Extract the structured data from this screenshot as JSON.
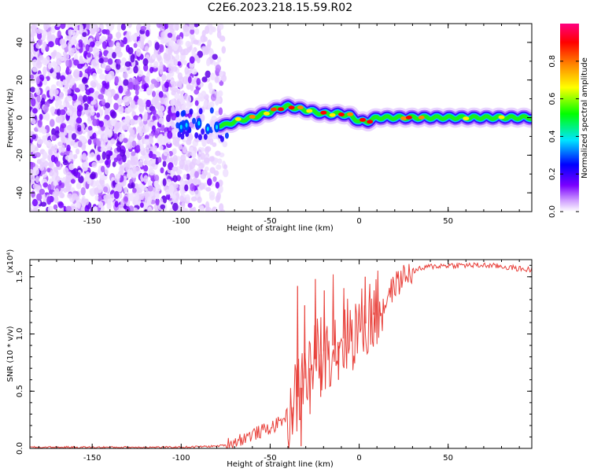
{
  "figure_title": "C2E6.2023.218.15.59.R02",
  "chart_data": [
    {
      "type": "heatmap",
      "xlabel": "Height of straight line (km)",
      "ylabel": "Frequency (Hz)",
      "xlim": [
        -185,
        97
      ],
      "ylim": [
        -50,
        50
      ],
      "xticks": [
        -150,
        -100,
        -50,
        0,
        50
      ],
      "yticks": [
        -40,
        -20,
        0,
        20,
        40
      ],
      "colorbar": {
        "label": "Normalized spectral amplitude",
        "range": [
          0,
          1
        ],
        "ticks": [
          "0.0",
          "0.2",
          "0.4",
          "0.6",
          "0.8"
        ],
        "colormap": "rainbow",
        "stops": [
          "#ffffff",
          "#7a00ff",
          "#0000ff",
          "#00e5ff",
          "#00ff00",
          "#ffff00",
          "#ff8800",
          "#ff0000",
          "#ff0080"
        ]
      },
      "noise_region_x": [
        -185,
        -75
      ],
      "ridge": {
        "description_values_in": "x km, frequency Hz",
        "points": [
          [
            -100,
            -5
          ],
          [
            -90,
            -5
          ],
          [
            -80,
            -4
          ],
          [
            -75,
            -4
          ],
          [
            -70,
            -2
          ],
          [
            -60,
            0
          ],
          [
            -50,
            3
          ],
          [
            -45,
            5
          ],
          [
            -40,
            6
          ],
          [
            -35,
            5
          ],
          [
            -30,
            4
          ],
          [
            -25,
            3
          ],
          [
            -20,
            2
          ],
          [
            -10,
            2
          ],
          [
            -5,
            1
          ],
          [
            0,
            -2
          ],
          [
            5,
            -2
          ],
          [
            10,
            0
          ],
          [
            20,
            0
          ],
          [
            40,
            0
          ],
          [
            60,
            0
          ],
          [
            80,
            0
          ],
          [
            95,
            0
          ]
        ]
      }
    },
    {
      "type": "line",
      "xlabel": "Height of straight line (km)",
      "ylabel": "SNR (10 * v/v)",
      "y_multiplier": "(x10⁴)",
      "xlim": [
        -185,
        97
      ],
      "ylim": [
        0,
        1.65
      ],
      "xticks": [
        -150,
        -100,
        -50,
        0,
        50
      ],
      "yticks": [
        "0.0",
        "0.5",
        "1.0",
        "1.5"
      ],
      "color": "#e8403a",
      "x_step": 0.5,
      "trend": {
        "x": [
          -185,
          -100,
          -80,
          -75,
          -70,
          -60,
          -50,
          -45,
          -40,
          -35,
          -30,
          -25,
          -20,
          -15,
          -10,
          -5,
          0,
          5,
          10,
          15,
          20,
          25,
          30,
          40,
          50,
          60,
          70,
          80,
          90,
          97
        ],
        "y": [
          0.01,
          0.01,
          0.02,
          0.03,
          0.06,
          0.12,
          0.18,
          0.22,
          0.3,
          0.45,
          0.65,
          0.78,
          0.85,
          0.9,
          0.95,
          1.0,
          1.05,
          1.12,
          1.2,
          1.3,
          1.42,
          1.5,
          1.55,
          1.59,
          1.6,
          1.6,
          1.6,
          1.59,
          1.57,
          1.56
        ]
      },
      "spikes": [
        {
          "x": -35,
          "y": 1.42
        },
        {
          "x": -31,
          "y": 1.25
        },
        {
          "x": -25,
          "y": 1.48
        },
        {
          "x": -20,
          "y": 1.38
        },
        {
          "x": -15,
          "y": 1.52
        },
        {
          "x": -9,
          "y": 1.4
        },
        {
          "x": 3,
          "y": 1.5
        },
        {
          "x": 8,
          "y": 1.38
        },
        {
          "x": -38,
          "y": 0.2
        },
        {
          "x": -33,
          "y": 0.02
        },
        {
          "x": -28,
          "y": 0.3
        },
        {
          "x": -22,
          "y": 0.45
        },
        {
          "x": -12,
          "y": 0.6
        }
      ]
    }
  ]
}
